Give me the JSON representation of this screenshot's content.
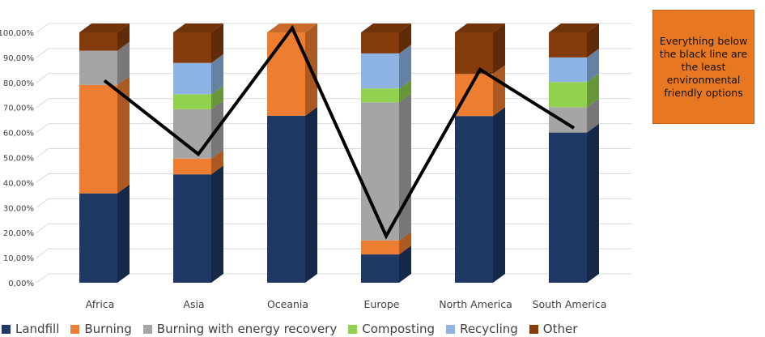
{
  "chart_data": {
    "type": "bar",
    "stacked": true,
    "three_d": true,
    "categories": [
      "Africa",
      "Asia",
      "Oceania",
      "Europe",
      "North America",
      "South America"
    ],
    "yticks": [
      "0,00%",
      "10,00%",
      "20,00%",
      "30,00%",
      "40,00%",
      "50,00%",
      "60,00%",
      "70,00%",
      "80,00%",
      "90,00%",
      "100,00%"
    ],
    "ylim": [
      0,
      100
    ],
    "grid": true,
    "legend_position": "bottom",
    "series": [
      {
        "name": "Landfill",
        "color": "#1f3864",
        "values": [
          35.7,
          43.3,
          66.7,
          11.3,
          66.6,
          60.0
        ]
      },
      {
        "name": "Burning",
        "color": "#ed7d31",
        "values": [
          43.3,
          6.3,
          33.3,
          5.6,
          16.8,
          0.0
        ]
      },
      {
        "name": "Burning with energy recovery",
        "color": "#a5a5a5",
        "values": [
          13.7,
          19.7,
          0.0,
          55.2,
          0.0,
          10.1
        ]
      },
      {
        "name": "Composting",
        "color": "#92d050",
        "values": [
          0.0,
          6.0,
          0.0,
          5.5,
          0.0,
          10.1
        ]
      },
      {
        "name": "Recycling",
        "color": "#8eb4e3",
        "values": [
          0.0,
          12.5,
          0.0,
          14.0,
          0.0,
          9.8
        ]
      },
      {
        "name": "Other",
        "color": "#843c0c",
        "values": [
          7.3,
          12.2,
          0.0,
          8.4,
          16.6,
          10.0
        ]
      }
    ],
    "line": {
      "color": "#000000",
      "values": [
        79.0,
        49.6,
        100.0,
        16.9,
        83.4,
        60.0
      ]
    },
    "annotation": "Everything below the black line are the least environmental friendly options"
  }
}
